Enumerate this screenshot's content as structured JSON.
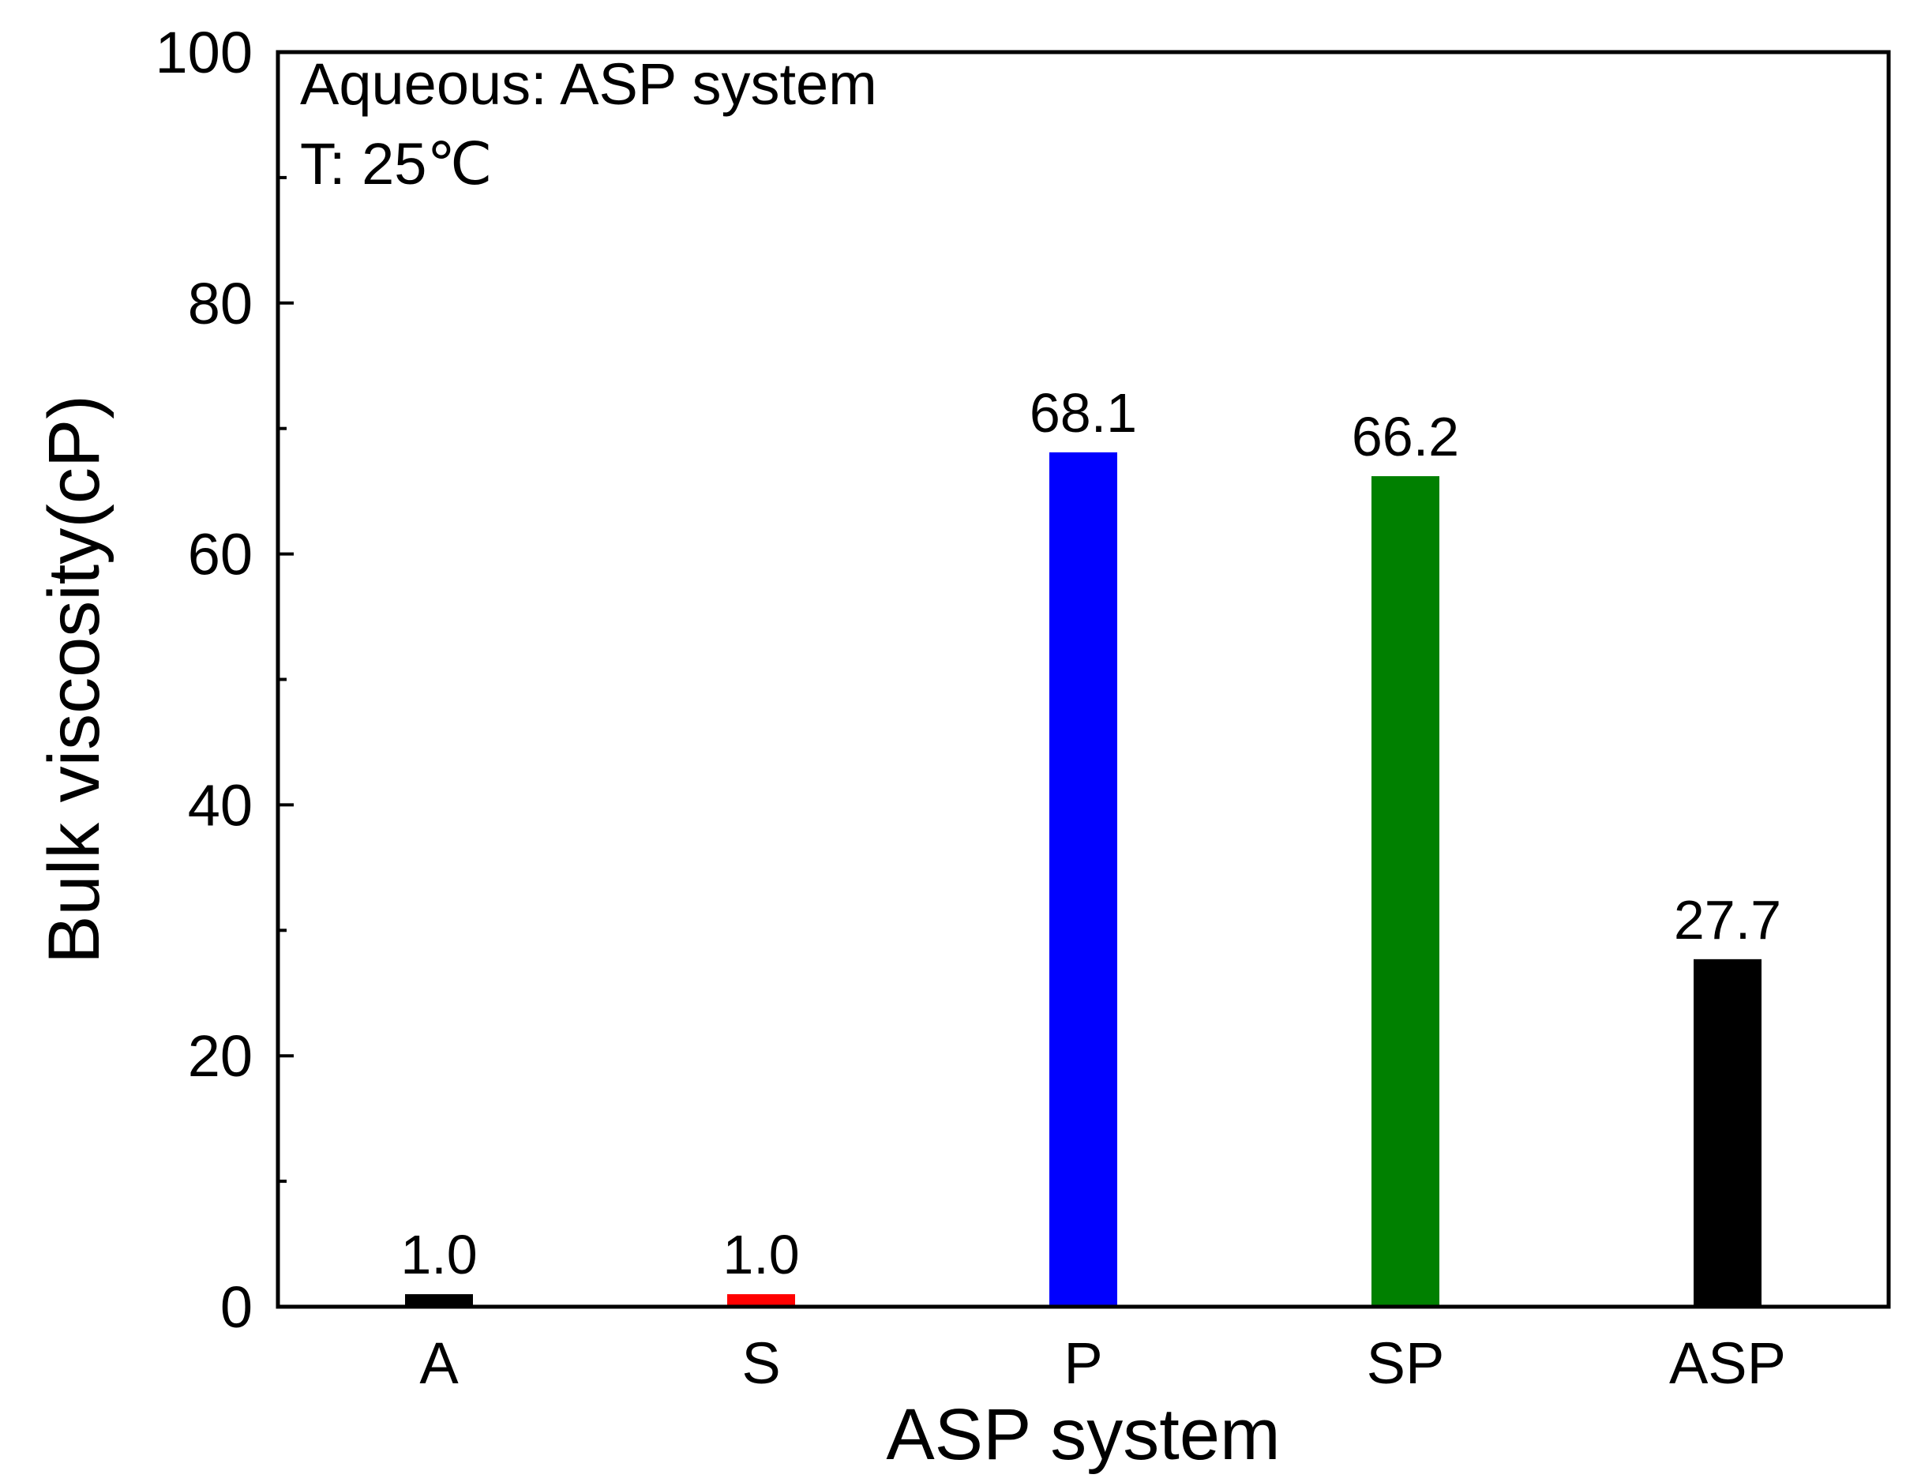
{
  "chart_data": {
    "type": "bar",
    "categories": [
      "A",
      "S",
      "P",
      "SP",
      "ASP"
    ],
    "values": [
      1.0,
      1.0,
      68.1,
      66.2,
      27.7
    ],
    "value_labels": [
      "1.0",
      "1.0",
      "68.1",
      "66.2",
      "27.7"
    ],
    "colors": [
      "#000000",
      "#ff0000",
      "#0000ff",
      "#008000",
      "#000000"
    ],
    "xlabel": "ASP system",
    "ylabel": "Bulk viscosity(cP)",
    "ylim": [
      0,
      100
    ],
    "yticks": [
      0,
      20,
      40,
      60,
      80,
      100
    ],
    "ytick_labels": [
      "0",
      "20",
      "40",
      "60",
      "80",
      "100"
    ],
    "annotations": [
      "Aqueous: ASP system",
      "T: 25℃"
    ],
    "grid": false,
    "legend": "none"
  }
}
